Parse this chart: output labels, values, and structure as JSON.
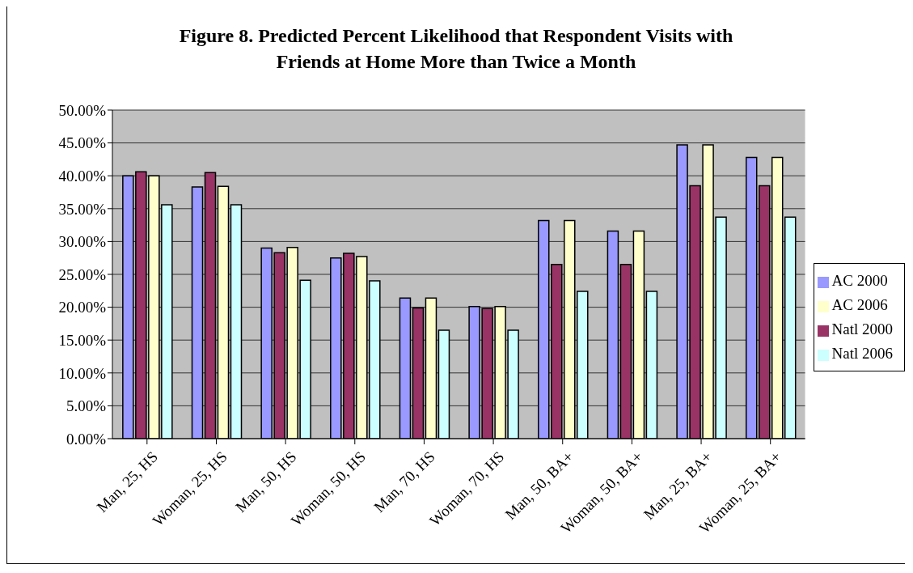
{
  "chart_data": {
    "type": "bar",
    "title": "Figure 8. Predicted Percent Likelihood that Respondent Visits with Friends at Home More than Twice a Month",
    "categories": [
      "Man, 25, HS",
      "Woman, 25, HS",
      "Man, 50, HS",
      "Woman, 50, HS",
      "Man, 70, HS",
      "Woman, 70, HS",
      "Man, 50, BA+",
      "Woman, 50, BA+",
      "Man, 25, BA+",
      "Woman, 25, BA+"
    ],
    "series": [
      {
        "name": "AC 2000",
        "color": "#9999ff",
        "values": [
          40.0,
          38.3,
          29.0,
          27.5,
          21.4,
          20.1,
          33.2,
          31.6,
          44.7,
          42.8
        ]
      },
      {
        "name": "Natl 2000",
        "color": "#993366",
        "values": [
          40.6,
          40.5,
          28.3,
          28.2,
          19.9,
          19.8,
          26.5,
          26.5,
          38.5,
          38.5
        ]
      },
      {
        "name": "AC 2006",
        "color": "#ffffcc",
        "values": [
          40.0,
          38.4,
          29.1,
          27.7,
          21.4,
          20.1,
          33.2,
          31.6,
          44.7,
          42.8
        ]
      },
      {
        "name": "Natl 2006",
        "color": "#ccffff",
        "values": [
          35.6,
          35.6,
          24.1,
          24.0,
          16.5,
          16.5,
          22.4,
          22.4,
          33.7,
          33.7
        ]
      }
    ],
    "ylim": [
      0,
      50
    ],
    "yticks": [
      {
        "value": 0,
        "label": "0.00%"
      },
      {
        "value": 5,
        "label": "5.00%"
      },
      {
        "value": 10,
        "label": "10.00%"
      },
      {
        "value": 15,
        "label": "15.00%"
      },
      {
        "value": 20,
        "label": "20.00%"
      },
      {
        "value": 25,
        "label": "25.00%"
      },
      {
        "value": 30,
        "label": "30.00%"
      },
      {
        "value": 35,
        "label": "35.00%"
      },
      {
        "value": 40,
        "label": "40.00%"
      },
      {
        "value": 45,
        "label": "45.00%"
      },
      {
        "value": 50,
        "label": "50.00%"
      }
    ],
    "grid": "y",
    "legend": "right"
  }
}
